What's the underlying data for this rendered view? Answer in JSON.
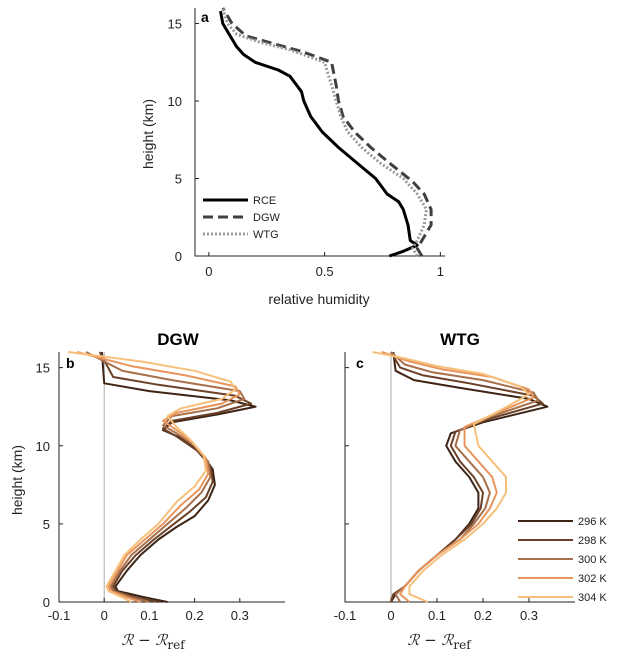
{
  "chart_data": [
    {
      "panel": "a",
      "type": "line",
      "title": "",
      "xlabel": "relative humidity",
      "ylabel": "height (km)",
      "xlim": [
        -0.06,
        1.02
      ],
      "ylim": [
        0,
        16
      ],
      "xticks": [
        "0",
        "0.5",
        "1"
      ],
      "xtick_values": [
        0,
        0.5,
        1
      ],
      "yticks": [
        "0",
        "5",
        "10",
        "15"
      ],
      "ytick_values": [
        0,
        5,
        10,
        15
      ],
      "legend": "bottom-left",
      "series": [
        {
          "name": "RCE",
          "style": "solid",
          "color": "#000000",
          "x": [
            0.78,
            0.84,
            0.9,
            0.87,
            0.86,
            0.84,
            0.82,
            0.77,
            0.72,
            0.64,
            0.56,
            0.49,
            0.44,
            0.41,
            0.4,
            0.38,
            0.35,
            0.3,
            0.2,
            0.15,
            0.12,
            0.1,
            0.08,
            0.06,
            0.05
          ],
          "y": [
            0,
            0.3,
            0.7,
            1,
            2,
            3,
            3.5,
            4,
            5,
            6,
            7,
            8,
            9,
            10,
            10.6,
            11,
            11.6,
            12,
            12.5,
            13,
            13.5,
            14,
            14.5,
            15,
            15.8
          ]
        },
        {
          "name": "DGW",
          "style": "dashed",
          "color": "#404040",
          "x": [
            0.92,
            0.9,
            0.92,
            0.96,
            0.96,
            0.93,
            0.88,
            0.78,
            0.7,
            0.63,
            0.58,
            0.56,
            0.55,
            0.53,
            0.4,
            0.28,
            0.16,
            0.1,
            0.08,
            0.06
          ],
          "y": [
            0,
            0.5,
            1,
            2,
            3,
            4,
            4.8,
            6,
            7,
            8,
            9,
            10,
            11,
            12.5,
            13.2,
            13.7,
            14.2,
            15,
            15.5,
            16
          ]
        },
        {
          "name": "WTG",
          "style": "dotted",
          "color": "#9a9a9a",
          "x": [
            0.9,
            0.88,
            0.9,
            0.93,
            0.94,
            0.9,
            0.84,
            0.74,
            0.66,
            0.6,
            0.57,
            0.55,
            0.53,
            0.5,
            0.35,
            0.22,
            0.12,
            0.08,
            0.06
          ],
          "y": [
            0,
            0.5,
            1,
            2,
            3,
            4,
            5,
            6,
            7,
            8,
            9,
            10,
            11,
            12.5,
            13.3,
            13.8,
            14.3,
            15,
            16
          ]
        }
      ]
    },
    {
      "panel": "b",
      "type": "line",
      "title": "DGW",
      "xlabel": "ℛ − ℛ",
      "xlabel_sub": "ref",
      "ylabel": "height (km)",
      "xlim": [
        -0.1,
        0.4
      ],
      "ylim": [
        0,
        16
      ],
      "xticks": [
        "-0.1",
        "0",
        "0.1",
        "0.2",
        "0.3"
      ],
      "xtick_values": [
        -0.1,
        0,
        0.1,
        0.2,
        0.3
      ],
      "yticks": [
        "0",
        "5",
        "10",
        "15"
      ],
      "ytick_values": [
        0,
        5,
        10,
        15
      ],
      "series": [
        {
          "name": "296 K",
          "color": "#3d2414",
          "x": [
            0.14,
            0.09,
            0.03,
            0.025,
            0.05,
            0.08,
            0.12,
            0.16,
            0.2,
            0.23,
            0.245,
            0.24,
            0.215,
            0.17,
            0.13,
            0.15,
            0.25,
            0.335,
            0.28,
            0.1,
            0.0,
            -0.005
          ],
          "y": [
            0,
            0.3,
            0.7,
            1,
            2,
            3,
            4,
            4.8,
            5.5,
            6.5,
            7.5,
            8.5,
            9.5,
            10.5,
            11,
            11.5,
            12,
            12.5,
            12.9,
            13.5,
            14,
            16
          ]
        },
        {
          "name": "298 K",
          "color": "#6b4128",
          "x": [
            0.12,
            0.07,
            0.025,
            0.02,
            0.04,
            0.07,
            0.11,
            0.15,
            0.19,
            0.225,
            0.24,
            0.235,
            0.205,
            0.16,
            0.13,
            0.15,
            0.25,
            0.325,
            0.29,
            0.12,
            0.02,
            -0.01
          ],
          "y": [
            0,
            0.3,
            0.7,
            1,
            2,
            3,
            4,
            4.9,
            5.8,
            6.7,
            7.7,
            8.7,
            9.7,
            10.6,
            11.1,
            11.6,
            12.1,
            12.7,
            13.2,
            13.9,
            14.4,
            16
          ]
        },
        {
          "name": "300 K",
          "color": "#a8704a",
          "x": [
            0.1,
            0.06,
            0.02,
            0.015,
            0.035,
            0.06,
            0.1,
            0.14,
            0.18,
            0.215,
            0.235,
            0.23,
            0.2,
            0.16,
            0.13,
            0.15,
            0.25,
            0.31,
            0.3,
            0.15,
            0.04,
            -0.04
          ],
          "y": [
            0,
            0.3,
            0.7,
            1,
            2,
            3,
            4,
            5,
            6,
            7,
            8,
            9,
            10,
            10.8,
            11.3,
            11.9,
            12.4,
            13,
            13.5,
            14.2,
            14.8,
            16
          ]
        },
        {
          "name": "302 K",
          "color": "#e8955d",
          "x": [
            0.08,
            0.05,
            0.015,
            0.01,
            0.03,
            0.05,
            0.09,
            0.13,
            0.17,
            0.21,
            0.23,
            0.225,
            0.195,
            0.16,
            0.13,
            0.16,
            0.26,
            0.3,
            0.29,
            0.18,
            0.06,
            -0.06
          ],
          "y": [
            0,
            0.3,
            0.7,
            1,
            2,
            3,
            4,
            5,
            6.2,
            7.2,
            8.2,
            9.2,
            10.2,
            11,
            11.6,
            12.1,
            12.7,
            13.3,
            13.8,
            14.5,
            15.1,
            16
          ]
        },
        {
          "name": "304 K",
          "color": "#f7c07a",
          "x": [
            0.06,
            0.04,
            0.01,
            0.005,
            0.025,
            0.045,
            0.08,
            0.12,
            0.16,
            0.2,
            0.225,
            0.22,
            0.19,
            0.16,
            0.14,
            0.17,
            0.26,
            0.29,
            0.28,
            0.2,
            0.08,
            -0.08
          ],
          "y": [
            0,
            0.3,
            0.7,
            1,
            2,
            3,
            4,
            5,
            6.4,
            7.4,
            8.4,
            9.4,
            10.4,
            11.2,
            11.9,
            12.4,
            13,
            13.6,
            14.1,
            14.8,
            15.4,
            16
          ]
        }
      ]
    },
    {
      "panel": "c",
      "type": "line",
      "title": "WTG",
      "xlabel": "ℛ − ℛ",
      "xlabel_sub": "ref",
      "ylabel": "",
      "xlim": [
        -0.1,
        0.4
      ],
      "ylim": [
        0,
        16
      ],
      "xticks": [
        "-0.1",
        "0",
        "0.1",
        "0.2",
        "0.3"
      ],
      "xtick_values": [
        -0.1,
        0,
        0.1,
        0.2,
        0.3
      ],
      "yticks": [],
      "ytick_values": [],
      "legend": "bottom-right",
      "series": [
        {
          "name": "296 K",
          "color": "#3d2414",
          "x": [
            0.0,
            0.01,
            0.03,
            0.06,
            0.1,
            0.14,
            0.17,
            0.19,
            0.19,
            0.17,
            0.14,
            0.12,
            0.13,
            0.2,
            0.34,
            0.3,
            0.15,
            0.05,
            0.01,
            0.005
          ],
          "y": [
            0,
            0.5,
            1,
            2,
            3,
            4,
            5,
            6,
            7,
            8,
            9,
            10,
            10.8,
            11.5,
            12.5,
            13,
            13.7,
            14.2,
            14.8,
            16
          ]
        },
        {
          "name": "298 K",
          "color": "#6b4128",
          "x": [
            0.0,
            0.005,
            0.03,
            0.06,
            0.1,
            0.14,
            0.175,
            0.195,
            0.2,
            0.18,
            0.15,
            0.13,
            0.14,
            0.21,
            0.33,
            0.31,
            0.17,
            0.07,
            0.02,
            0.0
          ],
          "y": [
            0,
            0.5,
            1,
            2,
            3,
            4,
            5,
            6,
            7,
            8,
            9,
            10,
            10.9,
            11.7,
            12.7,
            13.2,
            14,
            14.5,
            15,
            16
          ]
        },
        {
          "name": "300 K",
          "color": "#a8704a",
          "x": [
            0.02,
            0.01,
            0.03,
            0.06,
            0.1,
            0.15,
            0.18,
            0.205,
            0.215,
            0.2,
            0.17,
            0.14,
            0.15,
            0.22,
            0.32,
            0.31,
            0.2,
            0.09,
            0.03,
            0.0
          ],
          "y": [
            0,
            0.5,
            1,
            2,
            3,
            4,
            5,
            6,
            7,
            8,
            9,
            10,
            11,
            11.9,
            12.9,
            13.4,
            14.2,
            14.7,
            15.2,
            16
          ]
        },
        {
          "name": "302 K",
          "color": "#e8955d",
          "x": [
            0.04,
            0.02,
            0.03,
            0.06,
            0.1,
            0.15,
            0.19,
            0.215,
            0.23,
            0.22,
            0.19,
            0.16,
            0.16,
            0.23,
            0.31,
            0.3,
            0.22,
            0.11,
            0.04,
            -0.02
          ],
          "y": [
            0,
            0.5,
            1,
            2,
            3,
            4,
            5,
            6,
            7,
            8,
            9,
            10,
            11.2,
            12.1,
            13.1,
            13.6,
            14.4,
            14.9,
            15.4,
            16
          ]
        },
        {
          "name": "304 K",
          "color": "#f7c07a",
          "x": [
            0.08,
            0.04,
            0.04,
            0.07,
            0.11,
            0.16,
            0.2,
            0.23,
            0.25,
            0.25,
            0.22,
            0.19,
            0.18,
            0.24,
            0.3,
            0.28,
            0.2,
            0.1,
            0.03,
            -0.04
          ],
          "y": [
            0,
            0.5,
            1,
            2,
            3,
            4,
            5,
            6,
            7,
            8,
            9,
            10,
            11.4,
            12.3,
            13.3,
            13.8,
            14.6,
            15.1,
            15.6,
            16
          ]
        }
      ]
    }
  ]
}
